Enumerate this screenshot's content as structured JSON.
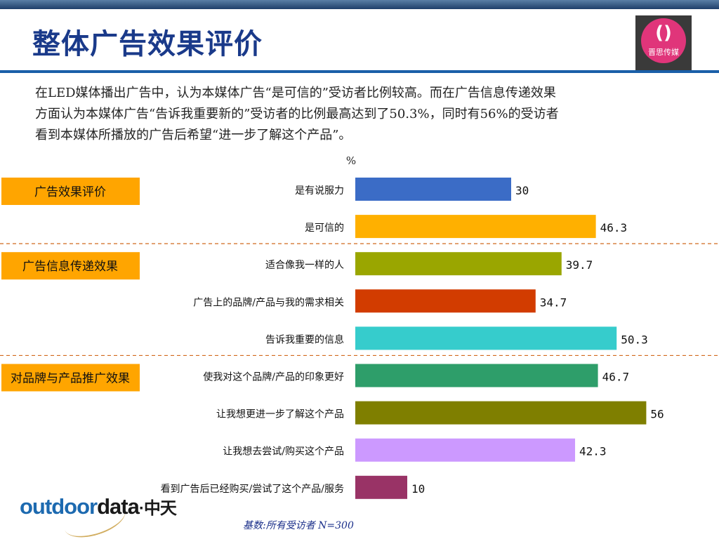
{
  "slide": {
    "title": "整体广告效果评价",
    "description": [
      "在LED媒体播出广告中，认为本媒体广告“是可信的”受访者比例较高。而在广告信息传递效果",
      "方面认为本媒体广告“告诉我重要新的”受访者的比例最高达到了50.3%，同时有56%的受访者",
      "看到本媒体所播放的广告后希望“进一步了解这个产品”。"
    ],
    "base_note": "基数:所有受访者   N=300",
    "brand": {
      "part1": "outdoor",
      "part2": "data",
      "part3": "·中天"
    },
    "logo": {
      "mark": "()",
      "text": "晋思传媒"
    }
  },
  "chart_data": {
    "type": "bar",
    "orientation": "horizontal",
    "unit_label": "%",
    "groups": [
      {
        "label": "广告效果评价",
        "start": 0,
        "end": 1
      },
      {
        "label": "广告信息传递效果",
        "start": 2,
        "end": 4
      },
      {
        "label": "对品牌与产品推广效果",
        "start": 5,
        "end": 8
      }
    ],
    "categories": [
      "是有说服力",
      "是可信的",
      "适合像我一样的人",
      "广告上的品牌/产品与我的需求相关",
      "告诉我重要的信息",
      "使我对这个品牌/产品的印象更好",
      "让我想更进一步了解这个产品",
      "让我想去尝试/购买这个产品",
      "看到广告后已经购买/尝试了这个产品/服务"
    ],
    "values": [
      30,
      46.3,
      39.7,
      34.7,
      50.3,
      46.7,
      56,
      42.3,
      10
    ],
    "value_labels": [
      "30",
      "46.3",
      "39.7",
      "34.7",
      "50.3",
      "46.7",
      "56",
      "42.3",
      "10"
    ],
    "colors": [
      "#3b6cc6",
      "#ffb000",
      "#9aa600",
      "#d23c00",
      "#36cccc",
      "#2e9e6a",
      "#7f7f00",
      "#cc99ff",
      "#993366"
    ],
    "group_label_color": "#ffa500",
    "xlim": [
      0,
      60
    ]
  }
}
